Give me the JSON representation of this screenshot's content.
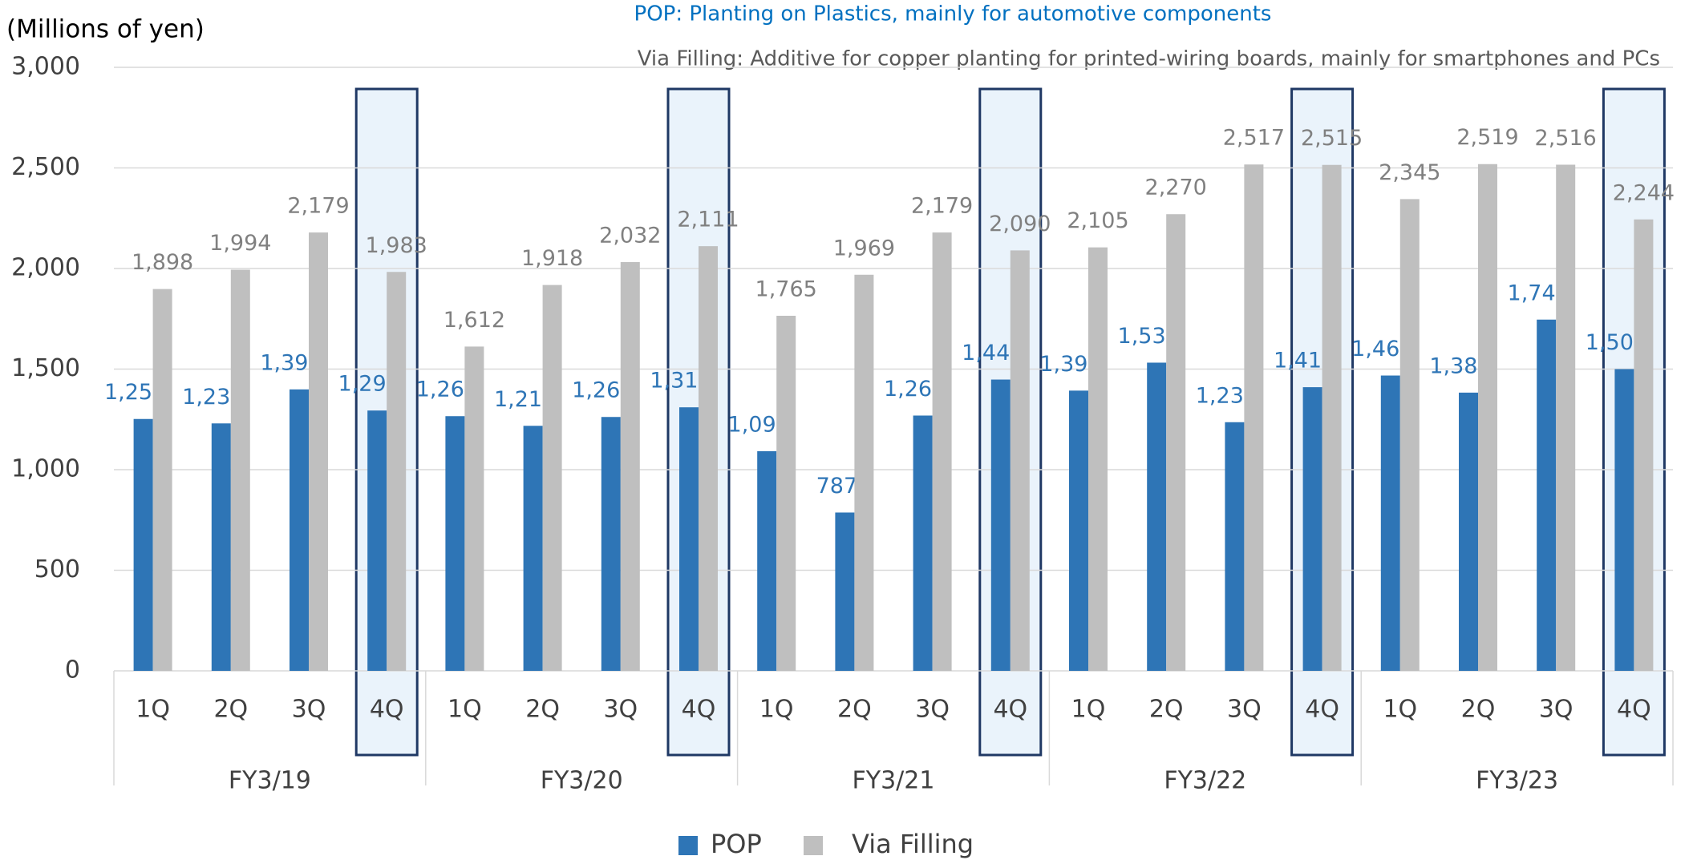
{
  "chart_data": {
    "type": "bar",
    "y_label": "(Millions of yen)",
    "annotations": [
      "POP: Planting on Plastics, mainly for automotive components",
      "Via Filling: Additive for copper planting for printed-wiring boards, mainly for smartphones and PCs"
    ],
    "categories": [
      "1Q",
      "2Q",
      "3Q",
      "4Q",
      "1Q",
      "2Q",
      "3Q",
      "4Q",
      "1Q",
      "2Q",
      "3Q",
      "4Q",
      "1Q",
      "2Q",
      "3Q",
      "4Q",
      "1Q",
      "2Q",
      "3Q",
      "4Q"
    ],
    "groups": [
      "FY3/19",
      "FY3/20",
      "FY3/21",
      "FY3/22",
      "FY3/23"
    ],
    "series": [
      {
        "name": "POP",
        "color": "#2e75b6",
        "label_color": "#2e75b6",
        "values": [
          1252,
          1230,
          1399,
          1294,
          1266,
          1218,
          1262,
          1310,
          1092,
          787,
          1269,
          1448,
          1393,
          1532,
          1236,
          1410,
          1468,
          1383,
          1746,
          1500
        ],
        "value_labels": [
          "1,252",
          "1,230",
          "1,399",
          "1,294",
          "1,266",
          "1,218",
          "1,262",
          "1,310",
          "1,092",
          "787",
          "1,269",
          "1,448",
          "1,393",
          "1,532",
          "1,236",
          "1,410",
          "1,468",
          "1,383",
          "1,746",
          "1,500"
        ]
      },
      {
        "name": "Via Filling",
        "color": "#bfbfbf",
        "label_color": "#808080",
        "values": [
          1898,
          1994,
          2179,
          1983,
          1612,
          1918,
          2032,
          2111,
          1765,
          1969,
          2179,
          2090,
          2105,
          2270,
          2517,
          2515,
          2345,
          2519,
          2516,
          2244
        ],
        "value_labels": [
          "1,898",
          "1,994",
          "2,179",
          "1,983",
          "1,612",
          "1,918",
          "2,032",
          "2,111",
          "1,765",
          "1,969",
          "2,179",
          "2,090",
          "2,105",
          "2,270",
          "2,517",
          "2,515",
          "2,345",
          "2,519",
          "2,516",
          "2,244"
        ]
      }
    ],
    "ylim": [
      0,
      3000
    ],
    "yticks": [
      0,
      500,
      {
        "value": 1000,
        "label": "1,000"
      },
      {
        "value": 1500,
        "label": "1,500"
      },
      {
        "value": 2000,
        "label": "2,000"
      },
      {
        "value": 2500,
        "label": "2,500"
      },
      {
        "value": 3000,
        "label": "3,000"
      }
    ],
    "grid": true
  }
}
